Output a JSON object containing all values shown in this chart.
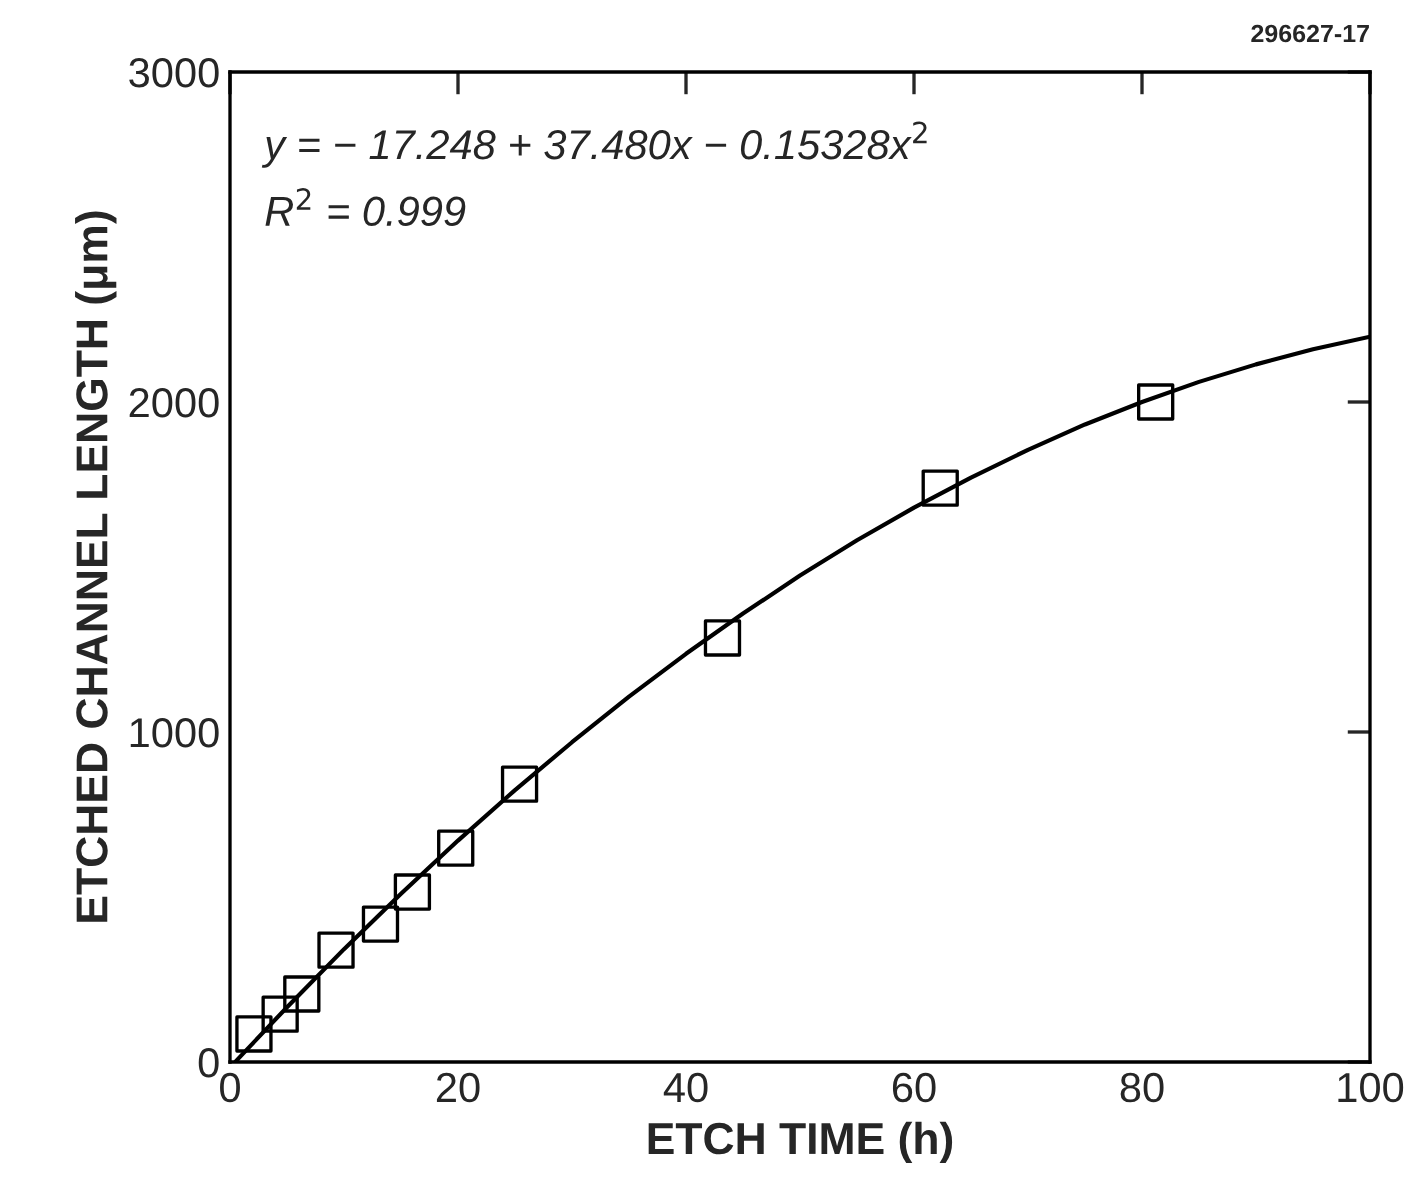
{
  "chart_data": {
    "type": "scatter",
    "xlabel": "ETCH TIME (h)",
    "ylabel": "ETCHED CHANNEL LENGTH (μm)",
    "xlim": [
      0,
      100
    ],
    "ylim": [
      0,
      3000
    ],
    "xticks": [
      0,
      20,
      40,
      60,
      80,
      100
    ],
    "yticks": [
      0,
      1000,
      2000,
      3000
    ],
    "grid": false,
    "legend": false,
    "marker": "square",
    "series": [
      {
        "color": "#000000",
        "x": [
          2.1,
          4.4,
          6.3,
          9.3,
          13.2,
          16,
          19.8,
          25.4,
          43.2,
          62.3,
          81.2
        ],
        "values": [
          85,
          145,
          206,
          339,
          418,
          515,
          648,
          842,
          1285,
          1739,
          2000
        ]
      },
      {
        "type": "line",
        "color": "#000000",
        "marker": "none",
        "x": [
          0.5,
          1,
          5,
          10,
          15,
          20,
          25,
          30,
          35,
          40,
          45,
          50,
          55,
          60,
          65,
          70,
          75,
          80,
          85,
          90,
          95,
          100
        ],
        "values": [
          2,
          20,
          166,
          342,
          510,
          671,
          824,
          969,
          1107,
          1237,
          1359,
          1474,
          1581,
          1680,
          1771,
          1855,
          1932,
          2000,
          2061,
          2114,
          2160,
          2198
        ]
      }
    ],
    "annotations": [
      "296627-17",
      "y = − 17.248 + 37.480x − 0.15328x$^{2}$",
      "R$^{2}$ = 0.999"
    ]
  }
}
